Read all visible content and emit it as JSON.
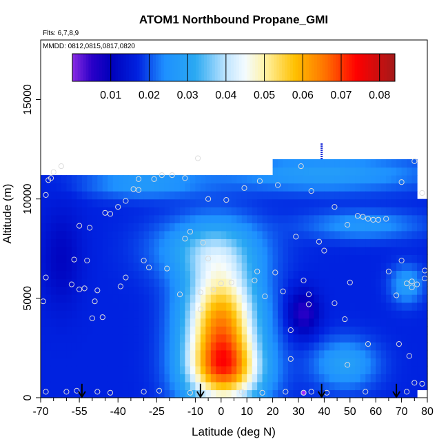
{
  "chart_data": {
    "type": "heatmap",
    "title": "ATOM1 Northbound Propane_GMI",
    "flights_label": "Flts: 6,7,8,9",
    "dates_label": "MMDD: 0812,0815,0817,0820",
    "xlabel": "Latitude (deg N)",
    "ylabel": "Altitude (m)",
    "xlim": [
      -70,
      80
    ],
    "ylim": [
      0,
      18000
    ],
    "xticks": [
      -70,
      -55,
      -40,
      -25,
      -10,
      0,
      10,
      20,
      30,
      40,
      50,
      60,
      70,
      80
    ],
    "xtick_labels": [
      "-70",
      "-55",
      "-40",
      "-25",
      "-10",
      "0",
      "10",
      "20",
      "30",
      "40",
      "50",
      "60",
      "70",
      "80"
    ],
    "xminor_ticks": [
      -65,
      -60,
      -50,
      -45,
      -35,
      -30,
      -20,
      -15,
      -5,
      5,
      15,
      25,
      35,
      45,
      55,
      65,
      75
    ],
    "yticks": [
      0,
      5000,
      10000,
      15000
    ],
    "ytick_labels": [
      "0",
      "5000",
      "10000",
      "15000"
    ],
    "colorbar": {
      "range": [
        0,
        0.084
      ],
      "ticks": [
        0.01,
        0.02,
        0.03,
        0.04,
        0.05,
        0.06,
        0.07,
        0.08
      ],
      "tick_labels": [
        "0.01",
        "0.02",
        "0.03",
        "0.04",
        "0.05",
        "0.06",
        "0.07",
        "0.08"
      ],
      "stops": [
        {
          "v": 0.0,
          "color": "#8a2be2"
        },
        {
          "v": 0.005,
          "color": "#2a00c8"
        },
        {
          "v": 0.01,
          "color": "#0000bb"
        },
        {
          "v": 0.017,
          "color": "#0022e0"
        },
        {
          "v": 0.024,
          "color": "#1e90ff"
        },
        {
          "v": 0.032,
          "color": "#2aa9f2"
        },
        {
          "v": 0.04,
          "color": "#bfe5ff"
        },
        {
          "v": 0.045,
          "color": "#f4fbff"
        },
        {
          "v": 0.05,
          "color": "#fff3a8"
        },
        {
          "v": 0.058,
          "color": "#ffc000"
        },
        {
          "v": 0.066,
          "color": "#ff7000"
        },
        {
          "v": 0.074,
          "color": "#ff0000"
        },
        {
          "v": 0.084,
          "color": "#a31a1a"
        }
      ]
    },
    "field_regions": [
      {
        "lat_range": [
          -70,
          21
        ],
        "alt_range": [
          0,
          11400
        ]
      },
      {
        "lat_range": [
          21,
          76
        ],
        "alt_range": [
          0,
          12000
        ]
      },
      {
        "lat_range": [
          76,
          80
        ],
        "alt_range": [
          500,
          10200
        ]
      }
    ],
    "background_value": 0.017,
    "features": [
      {
        "lat": 0,
        "alt": 3500,
        "lat_width": 14,
        "alt_width": 3300,
        "amp": 0.047,
        "note": "tropical propane plume"
      },
      {
        "lat": 2,
        "alt": 1300,
        "lat_width": 15,
        "alt_width": 1500,
        "amp": 0.024
      },
      {
        "lat": -5,
        "alt": 7500,
        "lat_width": 20,
        "alt_width": 1500,
        "amp": 0.014
      },
      {
        "lat": -30,
        "alt": 10800,
        "lat_width": 22,
        "alt_width": 700,
        "amp": 0.01
      },
      {
        "lat": 40,
        "alt": 11300,
        "lat_width": 40,
        "alt_width": 900,
        "amp": 0.011
      },
      {
        "lat": 55,
        "alt": 8700,
        "lat_width": 22,
        "alt_width": 700,
        "amp": 0.009
      },
      {
        "lat": 48,
        "alt": 1700,
        "lat_width": 12,
        "alt_width": 1200,
        "amp": 0.012
      },
      {
        "lat": 32,
        "alt": 4300,
        "lat_width": 6,
        "alt_width": 1100,
        "amp": -0.012
      },
      {
        "lat": 72,
        "alt": 5700,
        "lat_width": 6,
        "alt_width": 900,
        "amp": 0.011
      },
      {
        "lat": -62,
        "alt": 7000,
        "lat_width": 8,
        "alt_width": 2500,
        "amp": -0.006
      }
    ],
    "observations": [
      {
        "lat": -68,
        "alt": 300
      },
      {
        "lat": -60,
        "alt": 300
      },
      {
        "lat": -56,
        "alt": 350
      },
      {
        "lat": -48,
        "alt": 300
      },
      {
        "lat": -43,
        "alt": 250
      },
      {
        "lat": -30,
        "alt": 300
      },
      {
        "lat": -24,
        "alt": 350
      },
      {
        "lat": -12,
        "alt": 250
      },
      {
        "lat": 8,
        "alt": 300
      },
      {
        "lat": 16,
        "alt": 250
      },
      {
        "lat": 25,
        "alt": 300
      },
      {
        "lat": 32,
        "alt": 250
      },
      {
        "lat": 35,
        "alt": 300
      },
      {
        "lat": 41,
        "alt": 250
      },
      {
        "lat": 56,
        "alt": 300
      },
      {
        "lat": 72,
        "alt": 300
      },
      {
        "lat": 78,
        "alt": 700
      },
      {
        "lat": 75,
        "alt": 750
      },
      {
        "lat": 73,
        "alt": 2100
      },
      {
        "lat": 69,
        "alt": 2700
      },
      {
        "lat": 57,
        "alt": 2700
      },
      {
        "lat": 49,
        "alt": 1650
      },
      {
        "lat": 27,
        "alt": 1950
      },
      {
        "lat": 27,
        "alt": 3400
      },
      {
        "lat": 48,
        "alt": 3950
      },
      {
        "lat": 44,
        "alt": 4750
      },
      {
        "lat": 34,
        "alt": 4700
      },
      {
        "lat": 34,
        "alt": 5200
      },
      {
        "lat": 32,
        "alt": 5900
      },
      {
        "lat": 24,
        "alt": 5350
      },
      {
        "lat": 17,
        "alt": 5100
      },
      {
        "lat": 13,
        "alt": 5900
      },
      {
        "lat": 4,
        "alt": 5800
      },
      {
        "lat": 0,
        "alt": 5750
      },
      {
        "lat": -3,
        "alt": 5450
      },
      {
        "lat": -8,
        "alt": 5300
      },
      {
        "lat": -8,
        "alt": 4450
      },
      {
        "lat": -16,
        "alt": 5200
      },
      {
        "lat": -21,
        "alt": 6500
      },
      {
        "lat": -28,
        "alt": 6550
      },
      {
        "lat": -30,
        "alt": 6900
      },
      {
        "lat": -37,
        "alt": 6050
      },
      {
        "lat": -39,
        "alt": 5600
      },
      {
        "lat": -48,
        "alt": 5400
      },
      {
        "lat": -53,
        "alt": 5500
      },
      {
        "lat": -55,
        "alt": 5450
      },
      {
        "lat": -58,
        "alt": 5700
      },
      {
        "lat": -68,
        "alt": 6050
      },
      {
        "lat": -69,
        "alt": 4850
      },
      {
        "lat": -49,
        "alt": 4850
      },
      {
        "lat": -46,
        "alt": 4050
      },
      {
        "lat": -50,
        "alt": 4000
      },
      {
        "lat": -57,
        "alt": 6950
      },
      {
        "lat": -52,
        "alt": 6900
      },
      {
        "lat": -14,
        "alt": 8000
      },
      {
        "lat": -12,
        "alt": 8350
      },
      {
        "lat": -7,
        "alt": 7800
      },
      {
        "lat": -5,
        "alt": 7000
      },
      {
        "lat": 14,
        "alt": 6350
      },
      {
        "lat": 21,
        "alt": 6300
      },
      {
        "lat": 29,
        "alt": 8100
      },
      {
        "lat": 38,
        "alt": 7850
      },
      {
        "lat": 40,
        "alt": 7400
      },
      {
        "lat": 50,
        "alt": 5800
      },
      {
        "lat": 49,
        "alt": 8700
      },
      {
        "lat": 53,
        "alt": 9150
      },
      {
        "lat": 55,
        "alt": 9100
      },
      {
        "lat": 57,
        "alt": 9000
      },
      {
        "lat": 59,
        "alt": 8950
      },
      {
        "lat": 61,
        "alt": 8950
      },
      {
        "lat": 64,
        "alt": 9000
      },
      {
        "lat": 70,
        "alt": 6900
      },
      {
        "lat": 68,
        "alt": 5150
      },
      {
        "lat": 72,
        "alt": 5750
      },
      {
        "lat": 74,
        "alt": 5850
      },
      {
        "lat": 74,
        "alt": 5550
      },
      {
        "lat": 76,
        "alt": 5700
      },
      {
        "lat": 79,
        "alt": 6000
      },
      {
        "lat": 79,
        "alt": 6400
      },
      {
        "lat": 65,
        "alt": 6350
      },
      {
        "lat": 78,
        "alt": 10300
      },
      {
        "lat": 70,
        "alt": 10850
      },
      {
        "lat": 75,
        "alt": 11900
      },
      {
        "lat": 31,
        "alt": 11650
      },
      {
        "lat": 35,
        "alt": 10400
      },
      {
        "lat": 44,
        "alt": 9600
      },
      {
        "lat": 22,
        "alt": 10700
      },
      {
        "lat": 15,
        "alt": 10900
      },
      {
        "lat": 9,
        "alt": 10550
      },
      {
        "lat": 2,
        "alt": 9950
      },
      {
        "lat": -5,
        "alt": 10000
      },
      {
        "lat": -9,
        "alt": 12050
      },
      {
        "lat": -14,
        "alt": 11050
      },
      {
        "lat": -19,
        "alt": 11200
      },
      {
        "lat": -26,
        "alt": 11000
      },
      {
        "lat": -32,
        "alt": 10450
      },
      {
        "lat": -34,
        "alt": 10500
      },
      {
        "lat": -37,
        "alt": 9900
      },
      {
        "lat": -40,
        "alt": 9600
      },
      {
        "lat": -43,
        "alt": 9250
      },
      {
        "lat": -45,
        "alt": 9300
      },
      {
        "lat": -51,
        "alt": 8550
      },
      {
        "lat": -55,
        "alt": 8650
      },
      {
        "lat": -68,
        "alt": 10200
      },
      {
        "lat": -67,
        "alt": 10950
      },
      {
        "lat": -66,
        "alt": 11050
      },
      {
        "lat": -65,
        "alt": 11350
      },
      {
        "lat": -62,
        "alt": 11650
      },
      {
        "lat": -32,
        "alt": 11000
      },
      {
        "lat": -23,
        "alt": 11200
      }
    ],
    "highlighted_observations": [
      {
        "lat": 32,
        "alt": 250
      }
    ],
    "arrows": [
      {
        "lat": -54,
        "alt_top": 700
      },
      {
        "lat": -8,
        "alt_top": 700
      },
      {
        "lat": 39,
        "alt_top": 700
      },
      {
        "lat": 68,
        "alt_top": 700
      }
    ],
    "column_tick": {
      "lat": 39,
      "alt_from": 12000,
      "alt_to": 12800
    }
  }
}
